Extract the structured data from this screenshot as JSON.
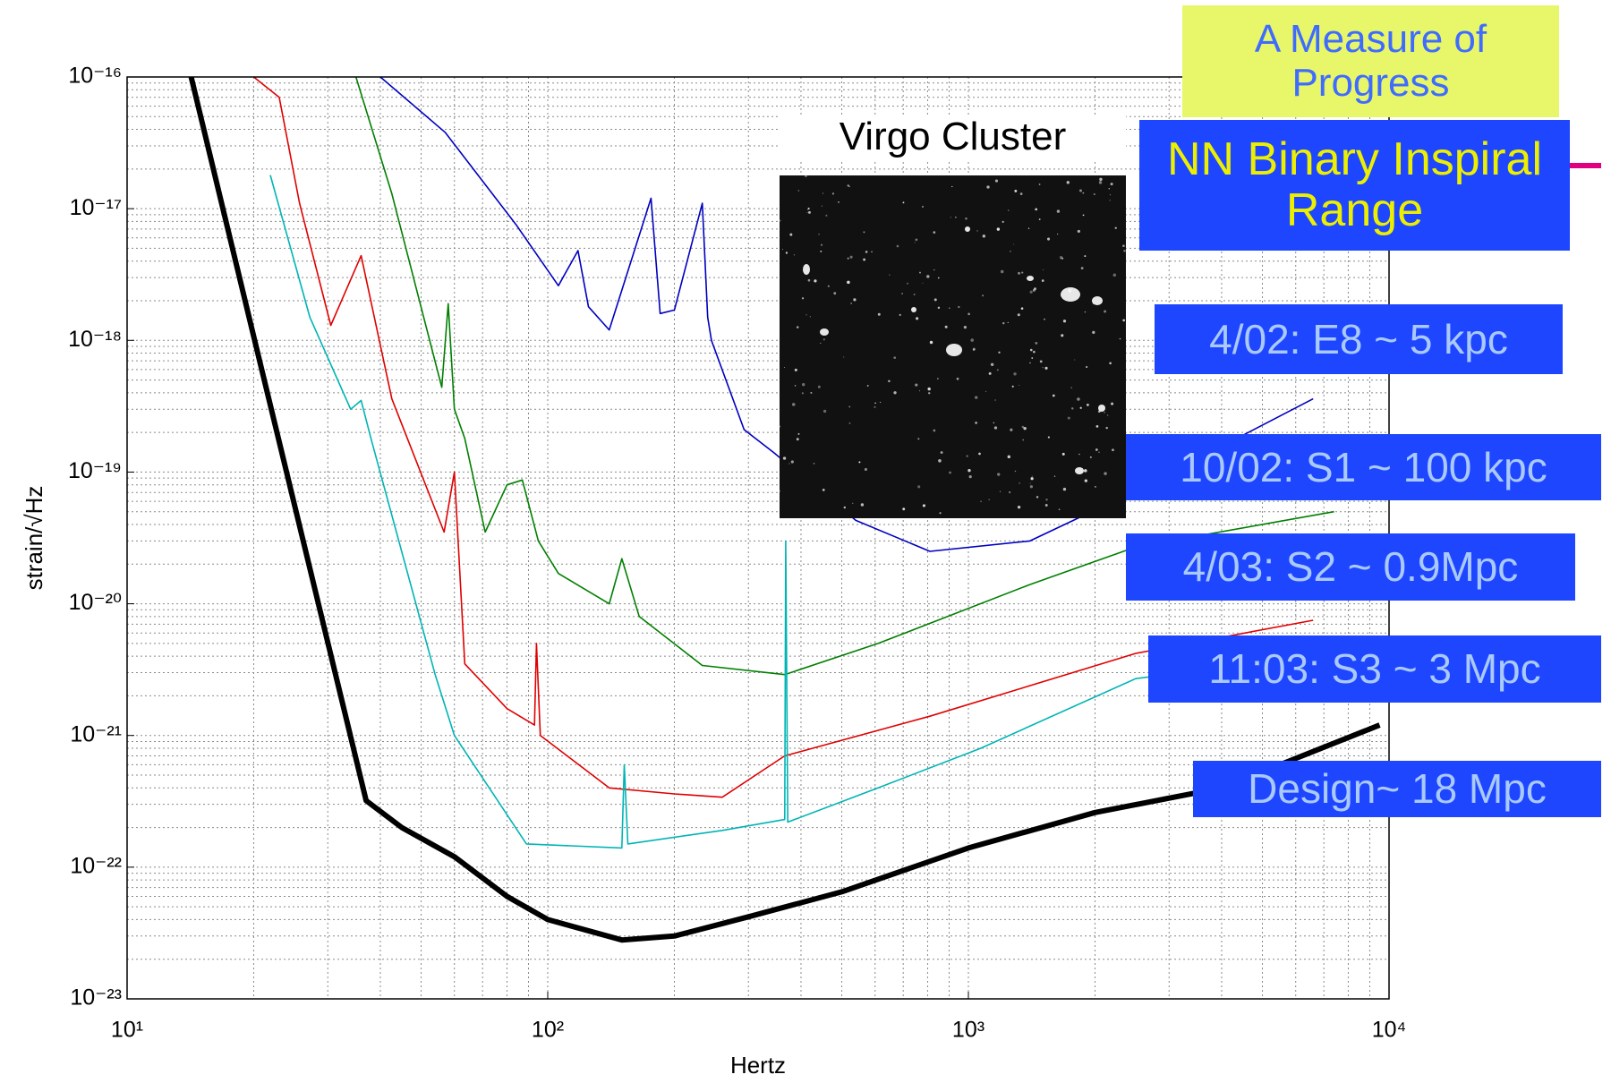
{
  "chart_data": {
    "type": "line",
    "title": "A Measure of Progress",
    "subtitle": "NN Binary Inspiral  Range",
    "image_caption": "Virgo Cluster",
    "xlabel": "Hertz",
    "ylabel": "strain/√Hz",
    "xscale": "log",
    "yscale": "log",
    "grid": true,
    "minor_grid": true,
    "xlim": [
      10,
      10000
    ],
    "ylim": [
      1e-23,
      1e-16
    ],
    "xticks": [
      {
        "value": 10,
        "label": "10¹"
      },
      {
        "value": 100,
        "label": "10²"
      },
      {
        "value": 1000,
        "label": "10³"
      },
      {
        "value": 10000,
        "label": "10⁴"
      }
    ],
    "yticks": [
      {
        "value": 1e-23,
        "label": "10⁻²³"
      },
      {
        "value": 1e-22,
        "label": "10⁻²²"
      },
      {
        "value": 1e-21,
        "label": "10⁻²¹"
      },
      {
        "value": 1e-20,
        "label": "10⁻²⁰"
      },
      {
        "value": 1e-19,
        "label": "10⁻¹⁹"
      },
      {
        "value": 1e-18,
        "label": "10⁻¹⁸"
      },
      {
        "value": 1e-17,
        "label": "10⁻¹⁷"
      },
      {
        "value": 1e-16,
        "label": "10⁻¹⁶"
      }
    ],
    "series": [
      {
        "name": "4/02: E8 ~ 5 kpc",
        "color": "#0000c0",
        "x": [
          40,
          57,
          84,
          106,
          118,
          125,
          140,
          176,
          185,
          200,
          233,
          240,
          245,
          293,
          345,
          540,
          810,
          1400,
          2500,
          6600
        ],
        "values": [
          1e-16,
          3.8e-17,
          7.6e-18,
          2.6e-18,
          4.8e-18,
          1.8e-18,
          1.2e-18,
          1.2e-17,
          1.6e-18,
          1.7e-18,
          1.1e-17,
          1.5e-18,
          1e-18,
          2.1e-19,
          1.4e-19,
          4.3e-20,
          2.5e-20,
          3e-20,
          7.2e-20,
          3.6e-19
        ]
      },
      {
        "name": "10/02: S1 ~ 100 kpc",
        "color": "#007f00",
        "x": [
          35,
          42.6,
          56,
          58,
          60,
          63.5,
          71,
          80,
          87,
          95,
          106,
          140,
          150,
          165,
          233,
          366,
          610,
          1400,
          2500,
          7400
        ],
        "values": [
          1e-16,
          1.3e-17,
          4.4e-19,
          1.9e-18,
          3e-19,
          1.8e-19,
          3.5e-20,
          8e-20,
          8.7e-20,
          3e-20,
          1.7e-20,
          1e-20,
          2.2e-20,
          8e-21,
          3.4e-21,
          2.9e-21,
          5e-21,
          1.4e-20,
          2.7e-20,
          5e-20
        ]
      },
      {
        "name": "4/03: S2 ~ 0.9Mpc",
        "color": "#e00000",
        "x": [
          20,
          23,
          25.7,
          30.5,
          36,
          42.6,
          56.7,
          60,
          63.5,
          80,
          93,
          94,
          96,
          140,
          200,
          260,
          366,
          810,
          2500,
          6600
        ],
        "values": [
          1e-16,
          7e-17,
          1.1e-17,
          1.3e-18,
          4.4e-18,
          3.6e-19,
          3.5e-20,
          1e-19,
          3.5e-21,
          1.6e-21,
          1.2e-21,
          5e-21,
          1e-21,
          4e-22,
          3.6e-22,
          3.4e-22,
          7e-22,
          1.4e-21,
          4.2e-21,
          7.5e-21
        ]
      },
      {
        "name": "11:03: S3 ~ 3 Mpc",
        "color": "#00b4b4",
        "x": [
          21.9,
          27.2,
          34,
          36,
          38,
          54,
          60,
          89,
          150,
          152,
          155,
          260,
          366,
          368,
          372,
          610,
          1070,
          2500,
          6600
        ],
        "values": [
          1.8e-17,
          1.5e-18,
          3e-19,
          3.5e-19,
          1.8e-19,
          2.9e-21,
          1e-21,
          1.5e-22,
          1.4e-22,
          6e-22,
          1.5e-22,
          1.9e-22,
          2.3e-22,
          3e-20,
          2.2e-22,
          4e-22,
          8e-22,
          2.7e-21,
          4e-21
        ]
      },
      {
        "name": "Design~ 18 Mpc",
        "color": "#000000",
        "x": [
          14.2,
          20,
          30,
          37,
          45,
          60,
          80,
          100,
          150,
          200,
          300,
          500,
          1000,
          2000,
          4000,
          9500
        ],
        "values": [
          1e-16,
          1.07e-18,
          5.1e-21,
          3.2e-22,
          2e-22,
          1.2e-22,
          6e-23,
          4e-23,
          2.8e-23,
          3e-23,
          4.2e-23,
          6.5e-23,
          1.4e-22,
          2.6e-22,
          4e-22,
          1.2e-21
        ]
      }
    ]
  }
}
